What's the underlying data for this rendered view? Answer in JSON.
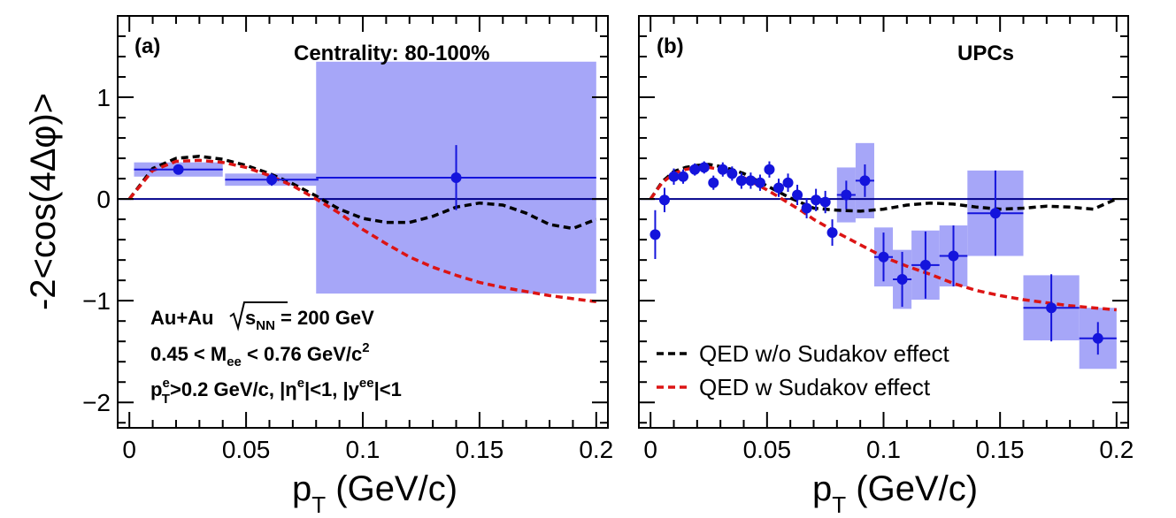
{
  "chart_data": [
    {
      "type": "scatter",
      "panel_label": "(a)",
      "title": "Centrality: 80-100%",
      "xlabel": "p",
      "xlabel_sub": "T",
      "xlabel_unit": " (GeV/c)",
      "ylabel": "-2<cos(4Δφ)>",
      "xlim": [
        -0.005,
        0.205
      ],
      "ylim": [
        -2.25,
        1.8
      ],
      "x_ticks": [
        0,
        0.05,
        0.1,
        0.15,
        0.2
      ],
      "x_tick_labels": [
        "0",
        "0.05",
        "0.1",
        "0.15",
        "0.2"
      ],
      "y_ticks": [
        -2,
        -1,
        0,
        1
      ],
      "y_tick_labels": [
        "−2",
        "−1",
        "0",
        "1"
      ],
      "annotations": {
        "line1_a": "Au+Au",
        "line1_s": "s",
        "line1_s_sub": "NN",
        "line1_b": " = 200 GeV",
        "line2_a": "0.45 < M",
        "line2_sub": "ee",
        "line2_b": " < 0.76 GeV/c",
        "line2_sup": "2",
        "line3_a": "p",
        "line3_sup1": "e",
        "line3_sub1": "T",
        "line3_b": ">0.2 GeV/c, |η",
        "line3_sup2": "e",
        "line3_c": "|<1, |y",
        "line3_sup3": "ee",
        "line3_d": "|<1"
      },
      "series": [
        {
          "name": "Data",
          "color": "#1414dc",
          "points": [
            {
              "x": 0.021,
              "y": 0.29,
              "xerr": 0.019,
              "yerr": 0.04,
              "sys": 0.07
            },
            {
              "x": 0.061,
              "y": 0.19,
              "xerr": 0.02,
              "yerr": 0.06,
              "sys": 0.06
            },
            {
              "x": 0.14,
              "y": 0.21,
              "xerr": 0.06,
              "yerr": 0.32,
              "sys": 1.14
            }
          ]
        },
        {
          "name": "QED w/o Sudakov effect",
          "color": "#000000",
          "x": [
            0,
            0.01,
            0.02,
            0.03,
            0.04,
            0.05,
            0.06,
            0.07,
            0.08,
            0.09,
            0.1,
            0.11,
            0.12,
            0.13,
            0.14,
            0.15,
            0.16,
            0.17,
            0.18,
            0.19,
            0.2
          ],
          "y": [
            0,
            0.3,
            0.4,
            0.42,
            0.39,
            0.33,
            0.25,
            0.15,
            0.03,
            -0.1,
            -0.19,
            -0.23,
            -0.23,
            -0.17,
            -0.08,
            -0.04,
            -0.06,
            -0.14,
            -0.25,
            -0.29,
            -0.2
          ]
        },
        {
          "name": "QED w Sudakov effect",
          "color": "#dc1414",
          "x": [
            0,
            0.01,
            0.02,
            0.03,
            0.04,
            0.05,
            0.06,
            0.07,
            0.08,
            0.09,
            0.1,
            0.11,
            0.12,
            0.13,
            0.14,
            0.15,
            0.16,
            0.17,
            0.18,
            0.19,
            0.2
          ],
          "y": [
            0,
            0.28,
            0.37,
            0.38,
            0.36,
            0.31,
            0.23,
            0.13,
            0.0,
            -0.14,
            -0.3,
            -0.44,
            -0.57,
            -0.67,
            -0.75,
            -0.82,
            -0.87,
            -0.91,
            -0.95,
            -0.98,
            -1.01
          ]
        }
      ]
    },
    {
      "type": "scatter",
      "panel_label": "(b)",
      "title": "UPCs",
      "xlabel": "p",
      "xlabel_sub": "T",
      "xlabel_unit": " (GeV/c)",
      "xlim": [
        -0.005,
        0.205
      ],
      "ylim": [
        -2.25,
        1.8
      ],
      "x_ticks": [
        0,
        0.05,
        0.1,
        0.15,
        0.2
      ],
      "x_tick_labels": [
        "0",
        "0.05",
        "0.1",
        "0.15",
        "0.2"
      ],
      "legend": {
        "placement": "bottom-left",
        "entries": [
          "QED w/o Sudakov effect",
          "QED w Sudakov effect"
        ]
      },
      "series": [
        {
          "name": "Data",
          "color": "#1414dc",
          "points": [
            {
              "x": 0.002,
              "y": -0.35,
              "xerr": 0,
              "yerr": 0.24,
              "sys": 0
            },
            {
              "x": 0.006,
              "y": -0.01,
              "xerr": 0,
              "yerr": 0.12,
              "sys": 0
            },
            {
              "x": 0.01,
              "y": 0.22,
              "xerr": 0,
              "yerr": 0.08,
              "sys": 0
            },
            {
              "x": 0.014,
              "y": 0.22,
              "xerr": 0,
              "yerr": 0.07,
              "sys": 0
            },
            {
              "x": 0.019,
              "y": 0.29,
              "xerr": 0,
              "yerr": 0.06,
              "sys": 0
            },
            {
              "x": 0.023,
              "y": 0.31,
              "xerr": 0,
              "yerr": 0.06,
              "sys": 0
            },
            {
              "x": 0.027,
              "y": 0.16,
              "xerr": 0,
              "yerr": 0.07,
              "sys": 0
            },
            {
              "x": 0.031,
              "y": 0.29,
              "xerr": 0,
              "yerr": 0.07,
              "sys": 0
            },
            {
              "x": 0.035,
              "y": 0.25,
              "xerr": 0,
              "yerr": 0.07,
              "sys": 0
            },
            {
              "x": 0.039,
              "y": 0.18,
              "xerr": 0,
              "yerr": 0.08,
              "sys": 0
            },
            {
              "x": 0.043,
              "y": 0.18,
              "xerr": 0,
              "yerr": 0.08,
              "sys": 0
            },
            {
              "x": 0.047,
              "y": 0.16,
              "xerr": 0,
              "yerr": 0.08,
              "sys": 0
            },
            {
              "x": 0.051,
              "y": 0.29,
              "xerr": 0,
              "yerr": 0.08,
              "sys": 0
            },
            {
              "x": 0.055,
              "y": 0.11,
              "xerr": 0,
              "yerr": 0.09,
              "sys": 0
            },
            {
              "x": 0.059,
              "y": 0.16,
              "xerr": 0,
              "yerr": 0.09,
              "sys": 0
            },
            {
              "x": 0.063,
              "y": 0.04,
              "xerr": 0,
              "yerr": 0.1,
              "sys": 0
            },
            {
              "x": 0.067,
              "y": -0.09,
              "xerr": 0,
              "yerr": 0.1,
              "sys": 0
            },
            {
              "x": 0.071,
              "y": -0.01,
              "xerr": 0,
              "yerr": 0.11,
              "sys": 0
            },
            {
              "x": 0.075,
              "y": -0.03,
              "xerr": 0,
              "yerr": 0.11,
              "sys": 0
            },
            {
              "x": 0.078,
              "y": -0.33,
              "xerr": 0,
              "yerr": 0.13,
              "sys": 0
            },
            {
              "x": 0.084,
              "y": 0.04,
              "xerr": 0.004,
              "yerr": 0.14,
              "sys": 0.27
            },
            {
              "x": 0.092,
              "y": 0.18,
              "xerr": 0.004,
              "yerr": 0.16,
              "sys": 0.37
            },
            {
              "x": 0.1,
              "y": -0.57,
              "xerr": 0.004,
              "yerr": 0.24,
              "sys": 0.29
            },
            {
              "x": 0.108,
              "y": -0.79,
              "xerr": 0.004,
              "yerr": 0.27,
              "sys": 0.29
            },
            {
              "x": 0.118,
              "y": -0.65,
              "xerr": 0.006,
              "yerr": 0.33,
              "sys": 0.34
            },
            {
              "x": 0.13,
              "y": -0.56,
              "xerr": 0.006,
              "yerr": 0.3,
              "sys": 0.3
            },
            {
              "x": 0.148,
              "y": -0.14,
              "xerr": 0.012,
              "yerr": 0.42,
              "sys": 0.42
            },
            {
              "x": 0.172,
              "y": -1.07,
              "xerr": 0.012,
              "yerr": 0.33,
              "sys": 0.32
            },
            {
              "x": 0.192,
              "y": -1.37,
              "xerr": 0.008,
              "yerr": 0.16,
              "sys": 0.3
            }
          ]
        },
        {
          "name": "QED w/o Sudakov effect",
          "color": "#000000",
          "x": [
            0,
            0.005,
            0.01,
            0.015,
            0.02,
            0.025,
            0.03,
            0.035,
            0.04,
            0.045,
            0.05,
            0.055,
            0.06,
            0.065,
            0.07,
            0.08,
            0.09,
            0.1,
            0.11,
            0.12,
            0.13,
            0.14,
            0.15,
            0.16,
            0.17,
            0.18,
            0.19,
            0.2
          ],
          "y": [
            0,
            0.17,
            0.27,
            0.31,
            0.33,
            0.34,
            0.32,
            0.29,
            0.25,
            0.19,
            0.13,
            0.07,
            0.01,
            -0.04,
            -0.09,
            -0.11,
            -0.12,
            -0.1,
            -0.06,
            -0.04,
            -0.05,
            -0.08,
            -0.1,
            -0.09,
            -0.07,
            -0.08,
            -0.1,
            0.0
          ]
        },
        {
          "name": "QED w Sudakov effect",
          "color": "#dc1414",
          "x": [
            0,
            0.005,
            0.01,
            0.015,
            0.02,
            0.025,
            0.03,
            0.035,
            0.04,
            0.045,
            0.05,
            0.055,
            0.06,
            0.065,
            0.07,
            0.08,
            0.09,
            0.1,
            0.11,
            0.12,
            0.13,
            0.14,
            0.15,
            0.16,
            0.17,
            0.18,
            0.19,
            0.2
          ],
          "y": [
            0,
            0.16,
            0.25,
            0.29,
            0.31,
            0.31,
            0.29,
            0.26,
            0.21,
            0.15,
            0.09,
            0.02,
            -0.05,
            -0.12,
            -0.2,
            -0.33,
            -0.45,
            -0.57,
            -0.66,
            -0.74,
            -0.83,
            -0.9,
            -0.95,
            -0.99,
            -1.02,
            -1.05,
            -1.07,
            -1.09
          ]
        }
      ]
    }
  ]
}
